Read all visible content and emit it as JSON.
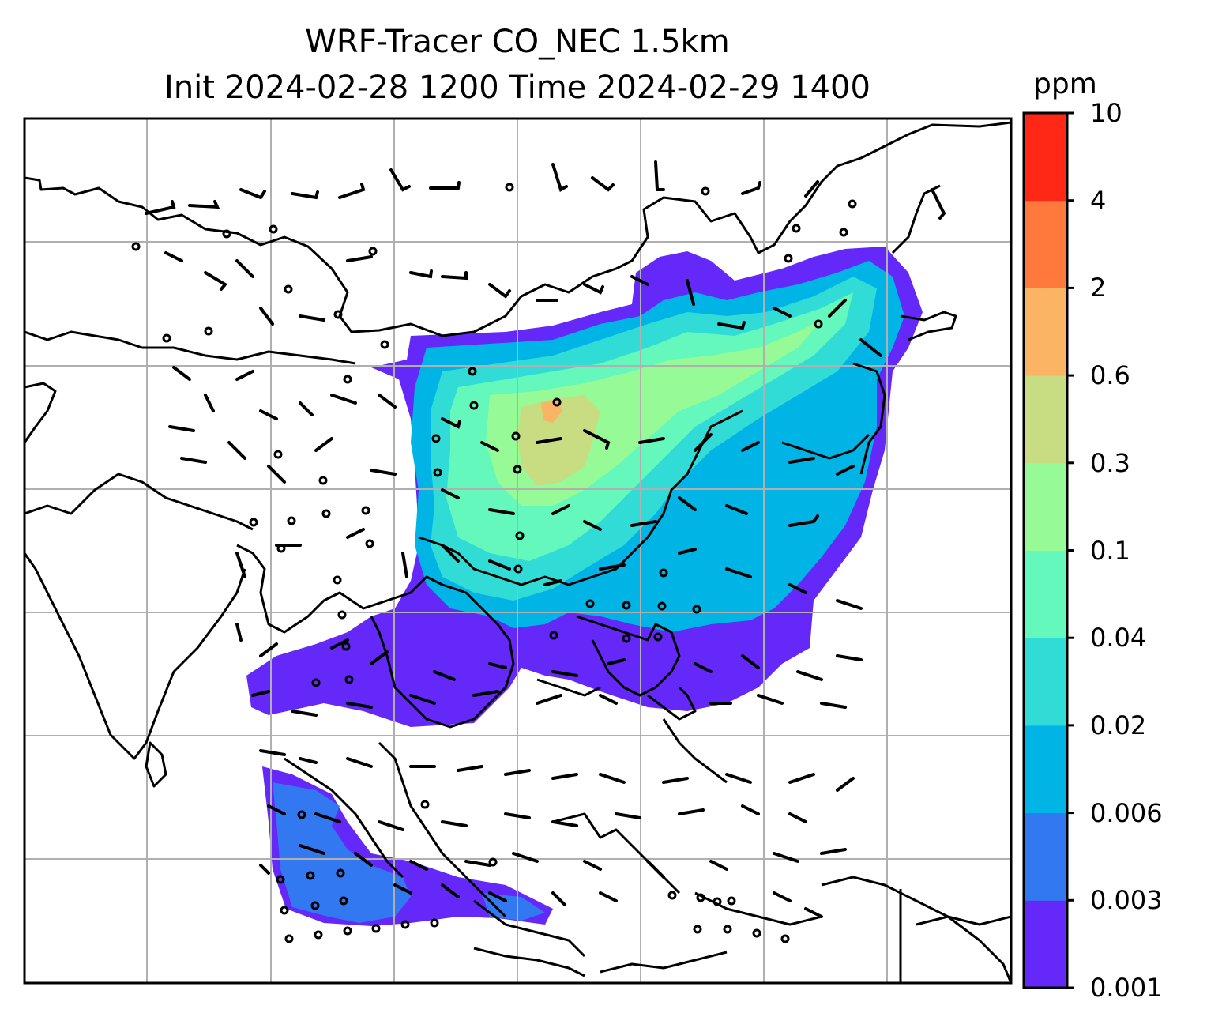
{
  "title": {
    "line1": "WRF-Tracer CO_NEC 1.5km",
    "line2": "Init 2024-02-28 1200 Time 2024-02-29 1400"
  },
  "colorbar": {
    "unit": "ppm",
    "levels": [
      "0.001",
      "0.003",
      "0.006",
      "0.02",
      "0.04",
      "0.1",
      "0.3",
      "0.6",
      "2",
      "4",
      "10"
    ],
    "colors": [
      "#6428f8",
      "#3278f0",
      "#00b4e6",
      "#32dcd6",
      "#64f8bc",
      "#96fa96",
      "#c8dc82",
      "#fab464",
      "#ff783c",
      "#ff2816"
    ]
  },
  "map": {
    "field": "CO_NEC tracer concentration",
    "gridlines": true,
    "wind_barbs": true,
    "coastlines": true
  }
}
